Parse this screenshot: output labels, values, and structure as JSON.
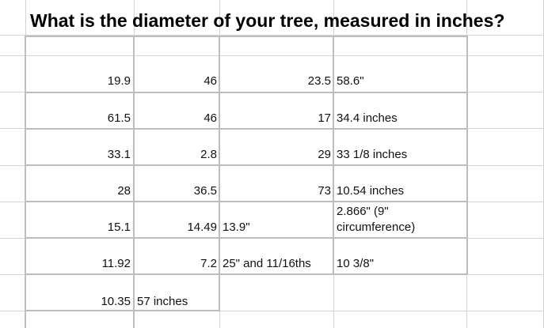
{
  "title": "What is the diameter of your tree, measured in inches?",
  "rows": [
    {
      "c1": "19.9",
      "c2": "46",
      "c3": "23.5",
      "c4": "58.6\""
    },
    {
      "c1": "61.5",
      "c2": "46",
      "c3": "17",
      "c4": "34.4 inches"
    },
    {
      "c1": "33.1",
      "c2": "2.8",
      "c3": "29",
      "c4": "33 1/8 inches"
    },
    {
      "c1": "28",
      "c2": "36.5",
      "c3": "73",
      "c4": "10.54 inches"
    },
    {
      "c1": "15.1",
      "c2": "14.49",
      "c3": "13.9\"",
      "c4": "2.866\" (9\" circumference)"
    },
    {
      "c1": "11.92",
      "c2": "7.2",
      "c3": "25\" and 11/16ths",
      "c4": "10 3/8\""
    },
    {
      "c1": "10.35",
      "c2": "57 inches",
      "c3": "",
      "c4": ""
    }
  ]
}
